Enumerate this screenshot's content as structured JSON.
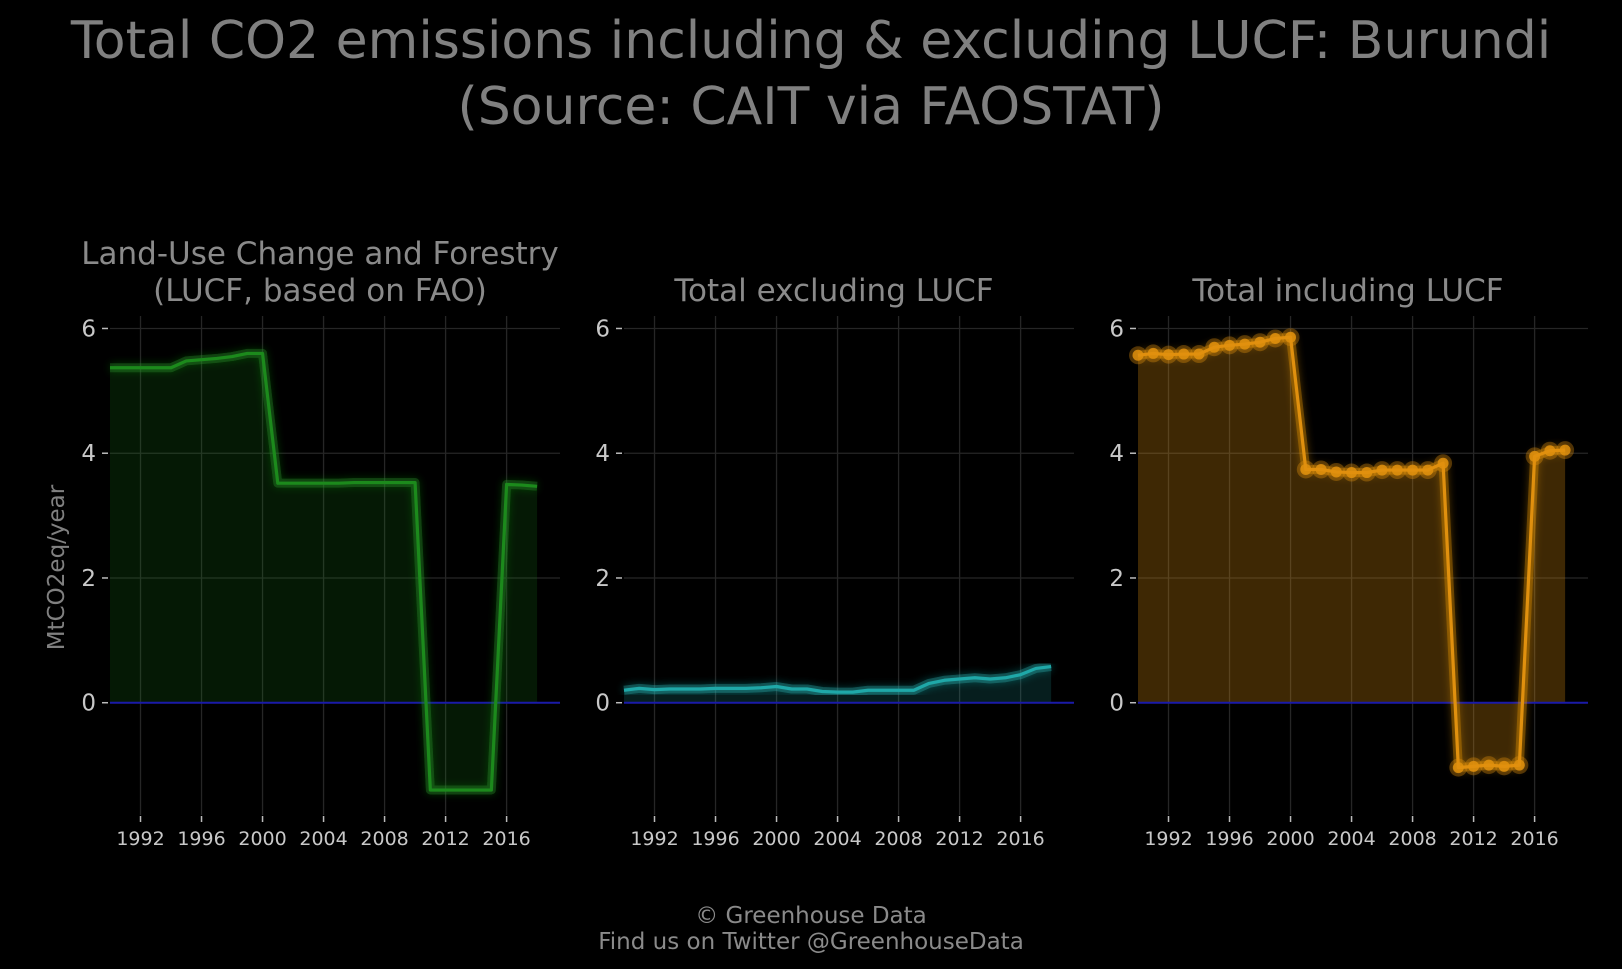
{
  "title_line1": "Total CO2 emissions including & excluding LUCF: Burundi",
  "title_line2": "(Source: CAIT via FAOSTAT)",
  "footer_line1": "© Greenhouse Data",
  "footer_line2": "Find us on Twitter @GreenhouseData",
  "colors": {
    "background": "#000000",
    "grid": "#262626",
    "zero_line": "#1a1aa8",
    "lucf": "#1c8a1c",
    "excl": "#1fa8a8",
    "incl": "#e0900e"
  },
  "chart_data": [
    {
      "type": "area",
      "title_line1": "Land-Use Change and Forestry",
      "title_line2": "(LUCF, based on FAO)",
      "ylabel": "MtCO2eq/year",
      "xlim": [
        1990,
        2019.5
      ],
      "ylim": [
        -1.8,
        6.2
      ],
      "xticks": [
        1992,
        1996,
        2000,
        2004,
        2008,
        2012,
        2016
      ],
      "yticks": [
        0,
        2,
        4,
        6
      ],
      "markers": false,
      "x": [
        1990,
        1991,
        1992,
        1993,
        1994,
        1995,
        1996,
        1997,
        1998,
        1999,
        2000,
        2001,
        2002,
        2003,
        2004,
        2005,
        2006,
        2007,
        2008,
        2009,
        2010,
        2011,
        2012,
        2013,
        2014,
        2015,
        2016,
        2017,
        2018
      ],
      "values": [
        5.37,
        5.37,
        5.37,
        5.37,
        5.37,
        5.48,
        5.5,
        5.52,
        5.55,
        5.6,
        5.6,
        3.52,
        3.52,
        3.52,
        3.52,
        3.52,
        3.53,
        3.53,
        3.53,
        3.53,
        3.53,
        -1.4,
        -1.4,
        -1.4,
        -1.4,
        -1.4,
        3.5,
        3.49,
        3.47
      ]
    },
    {
      "type": "area",
      "title_line1": "",
      "title_line2": "Total excluding LUCF",
      "ylabel": "",
      "xlim": [
        1990,
        2019.5
      ],
      "ylim": [
        -1.8,
        6.2
      ],
      "xticks": [
        1992,
        1996,
        2000,
        2004,
        2008,
        2012,
        2016
      ],
      "yticks": [
        0,
        2,
        4,
        6
      ],
      "markers": false,
      "x": [
        1990,
        1991,
        1992,
        1993,
        1994,
        1995,
        1996,
        1997,
        1998,
        1999,
        2000,
        2001,
        2002,
        2003,
        2004,
        2005,
        2006,
        2007,
        2008,
        2009,
        2010,
        2011,
        2012,
        2013,
        2014,
        2015,
        2016,
        2017,
        2018
      ],
      "values": [
        0.2,
        0.23,
        0.21,
        0.22,
        0.22,
        0.22,
        0.23,
        0.23,
        0.23,
        0.24,
        0.26,
        0.22,
        0.22,
        0.18,
        0.17,
        0.17,
        0.2,
        0.2,
        0.2,
        0.2,
        0.31,
        0.36,
        0.38,
        0.4,
        0.38,
        0.4,
        0.45,
        0.55,
        0.58
      ]
    },
    {
      "type": "area",
      "title_line1": "",
      "title_line2": "Total including LUCF",
      "ylabel": "",
      "xlim": [
        1990,
        2019.5
      ],
      "ylim": [
        -1.8,
        6.2
      ],
      "xticks": [
        1992,
        1996,
        2000,
        2004,
        2008,
        2012,
        2016
      ],
      "yticks": [
        0,
        2,
        4,
        6
      ],
      "markers": true,
      "x": [
        1990,
        1991,
        1992,
        1993,
        1994,
        1995,
        1996,
        1997,
        1998,
        1999,
        2000,
        2001,
        2002,
        2003,
        2004,
        2005,
        2006,
        2007,
        2008,
        2009,
        2010,
        2011,
        2012,
        2013,
        2014,
        2015,
        2016,
        2017,
        2018
      ],
      "values": [
        5.57,
        5.6,
        5.58,
        5.59,
        5.59,
        5.7,
        5.73,
        5.75,
        5.78,
        5.84,
        5.86,
        3.74,
        3.74,
        3.7,
        3.69,
        3.69,
        3.73,
        3.73,
        3.73,
        3.73,
        3.84,
        -1.04,
        -1.02,
        -1.0,
        -1.02,
        -1.0,
        3.95,
        4.04,
        4.05
      ]
    }
  ]
}
